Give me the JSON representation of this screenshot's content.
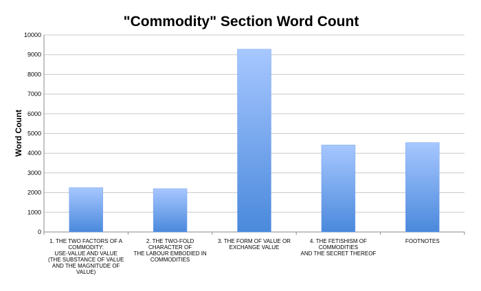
{
  "chart_data": {
    "type": "bar",
    "title": "\"Commodity\" Section Word Count",
    "xlabel": "",
    "ylabel": "Word Count",
    "ylim": [
      0,
      10000
    ],
    "yticks": [
      0,
      1000,
      2000,
      3000,
      4000,
      5000,
      6000,
      7000,
      8000,
      9000,
      10000
    ],
    "grid": true,
    "legend": false,
    "colors": {
      "bar_top": "#a7c7ff",
      "bar_bottom": "#4a89dc",
      "grid": "#c8c8c8",
      "axis": "#8a8a8a"
    },
    "categories": [
      [
        "1. THE TWO FACTORS OF A",
        "COMMODITY:",
        "USE-VALUE AND VALUE",
        "(THE SUBSTANCE OF VALUE",
        "AND THE MAGNITUDE OF",
        "VALUE)"
      ],
      [
        "2. THE TWO-FOLD",
        "CHARACTER OF",
        "THE LABOUR EMBODIED IN",
        "COMMODITIES"
      ],
      [
        "3. THE FORM OF VALUE OR",
        "EXCHANGE VALUE"
      ],
      [
        "4. THE FETISHISM OF",
        "COMMODITIES",
        "AND THE SECRET THEREOF"
      ],
      [
        "FOOTNOTES"
      ]
    ],
    "values": [
      2250,
      2200,
      9280,
      4420,
      4540
    ]
  }
}
